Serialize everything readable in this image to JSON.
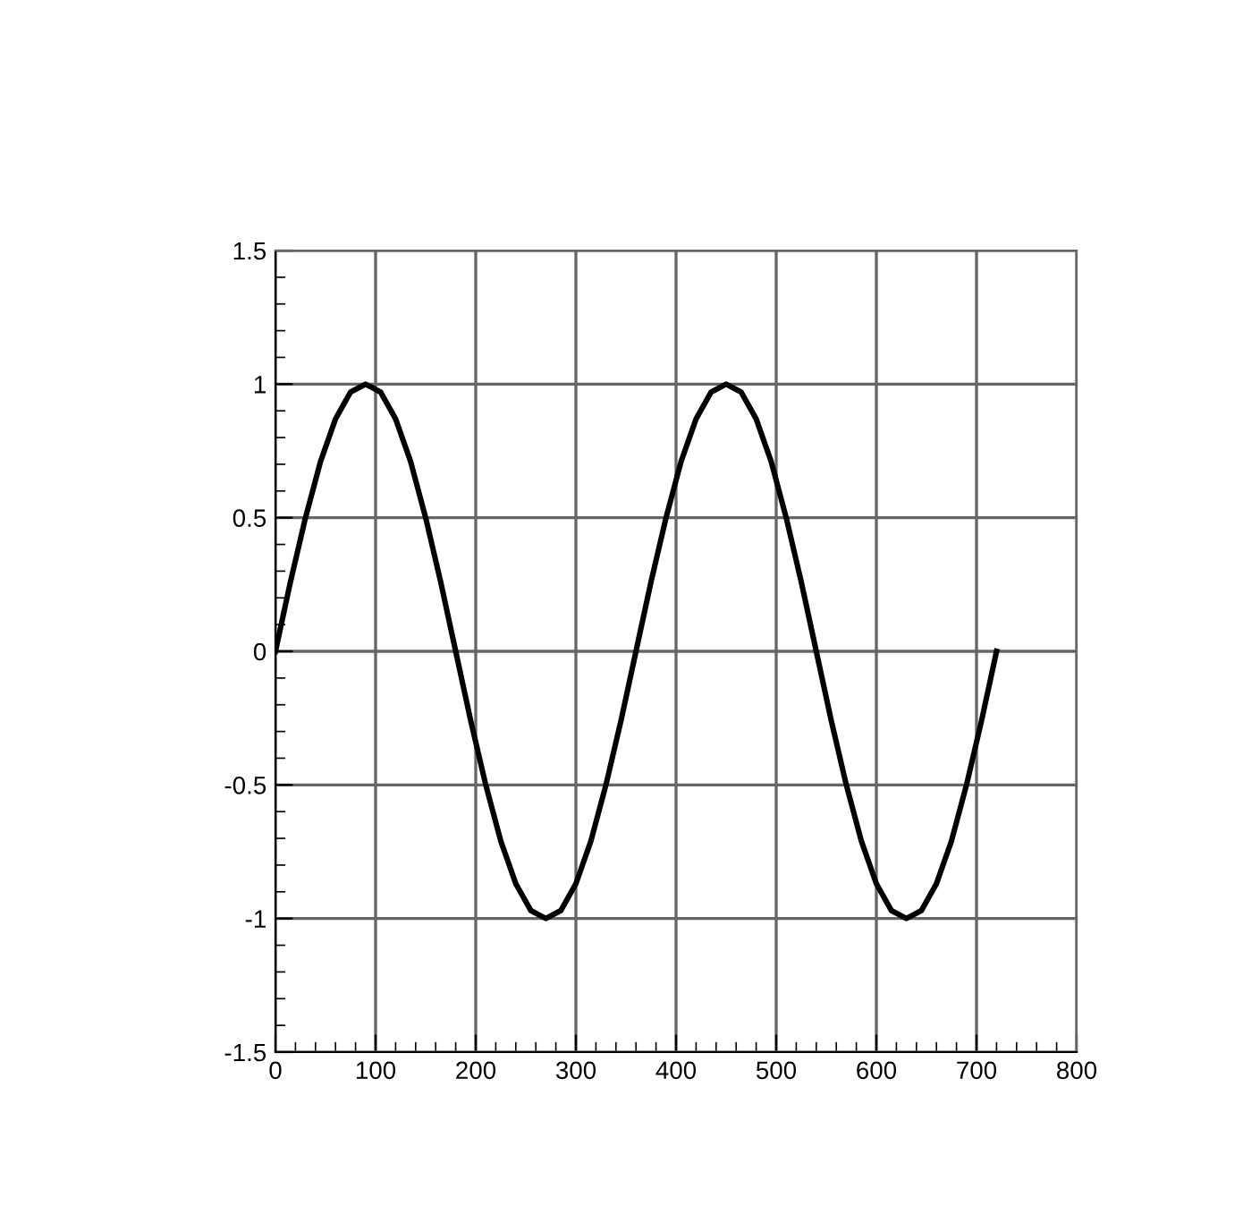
{
  "chart_data": {
    "type": "line",
    "x": [
      0,
      15,
      30,
      45,
      60,
      75,
      90,
      105,
      120,
      135,
      150,
      165,
      180,
      195,
      210,
      225,
      240,
      255,
      270,
      285,
      300,
      315,
      330,
      345,
      360,
      375,
      390,
      405,
      420,
      435,
      450,
      465,
      480,
      495,
      510,
      525,
      540,
      555,
      570,
      585,
      600,
      615,
      630,
      645,
      660,
      675,
      690,
      705,
      720
    ],
    "series": [
      {
        "color": "#000000",
        "values": [
          0,
          0.26,
          0.5,
          0.71,
          0.87,
          0.97,
          1,
          0.97,
          0.87,
          0.71,
          0.5,
          0.26,
          0,
          -0.26,
          -0.5,
          -0.71,
          -0.87,
          -0.97,
          -1,
          -0.97,
          -0.87,
          -0.71,
          -0.5,
          -0.26,
          0,
          0.26,
          0.5,
          0.71,
          0.87,
          0.97,
          1,
          0.97,
          0.87,
          0.71,
          0.5,
          0.26,
          0,
          -0.26,
          -0.5,
          -0.71,
          -0.87,
          -0.97,
          -1,
          -0.97,
          -0.87,
          -0.71,
          -0.5,
          -0.26,
          0
        ]
      }
    ],
    "xlim": [
      0,
      800
    ],
    "xticks": [
      0,
      100,
      200,
      300,
      400,
      500,
      600,
      700,
      800
    ],
    "ylim": [
      -1.5,
      1.5
    ],
    "yticks": [
      -1.5,
      -1,
      -0.5,
      0,
      0.5,
      1,
      1.5
    ],
    "grid": true,
    "marker": "none",
    "line_style": "solid"
  }
}
